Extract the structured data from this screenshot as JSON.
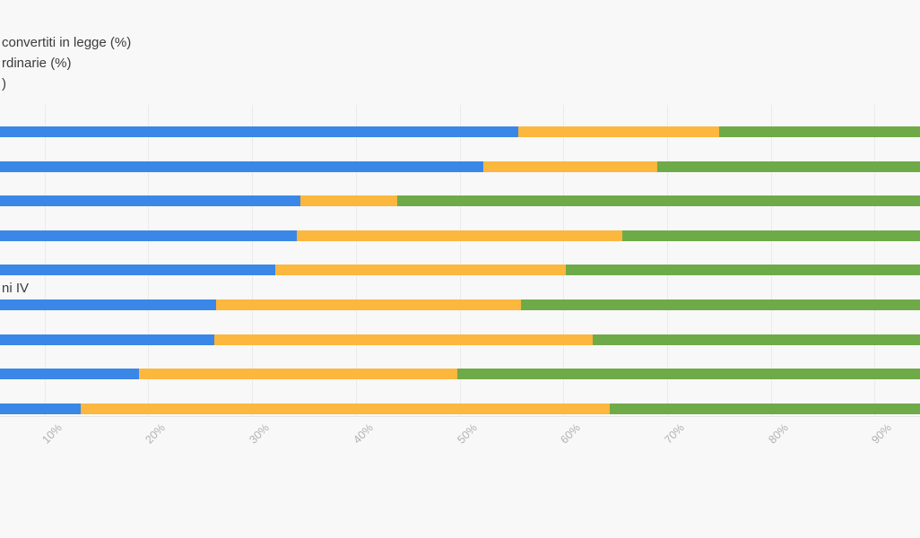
{
  "page": {
    "background_color": "#f8f8f8",
    "gridline_color": "#ebebeb"
  },
  "legend": {
    "items": [
      {
        "label": "convertiti in legge (%)",
        "color": "#3a87e8"
      },
      {
        "label": "rdinarie (%)",
        "color": "#fcb73e"
      },
      {
        "label": ")",
        "color": "#6faa49"
      }
    ]
  },
  "chart_data": {
    "type": "bar",
    "orientation": "horizontal",
    "stacked": true,
    "title": "",
    "xlabel": "",
    "ylabel": "",
    "grid": true,
    "legend_position": "top-left",
    "x_axis": {
      "range": [
        0,
        100
      ],
      "unit": "%",
      "ticks": [
        10,
        20,
        30,
        40,
        50,
        60,
        70,
        80,
        90
      ],
      "tick_labels": [
        "10%",
        "20%",
        "30%",
        "40%",
        "50%",
        "60%",
        "70%",
        "80%",
        "90%"
      ]
    },
    "categories": [
      "",
      "",
      "",
      "",
      "",
      "ni IV",
      "",
      "",
      ""
    ],
    "series": [
      {
        "name": "convertiti in legge (%)",
        "color": "#3a87e8",
        "values": [
          55.7,
          52.3,
          34.7,
          34.3,
          32.2,
          26.5,
          26.4,
          19.1,
          13.5
        ]
      },
      {
        "name": "rdinarie (%)",
        "color": "#fcb73e",
        "values": [
          19.3,
          16.8,
          9.3,
          31.4,
          28.0,
          29.4,
          36.4,
          30.7,
          51.0
        ]
      },
      {
        "name": ")",
        "color": "#6faa49",
        "values": [
          25.0,
          30.9,
          56.0,
          34.3,
          39.8,
          44.1,
          37.2,
          50.2,
          35.5
        ]
      }
    ]
  }
}
